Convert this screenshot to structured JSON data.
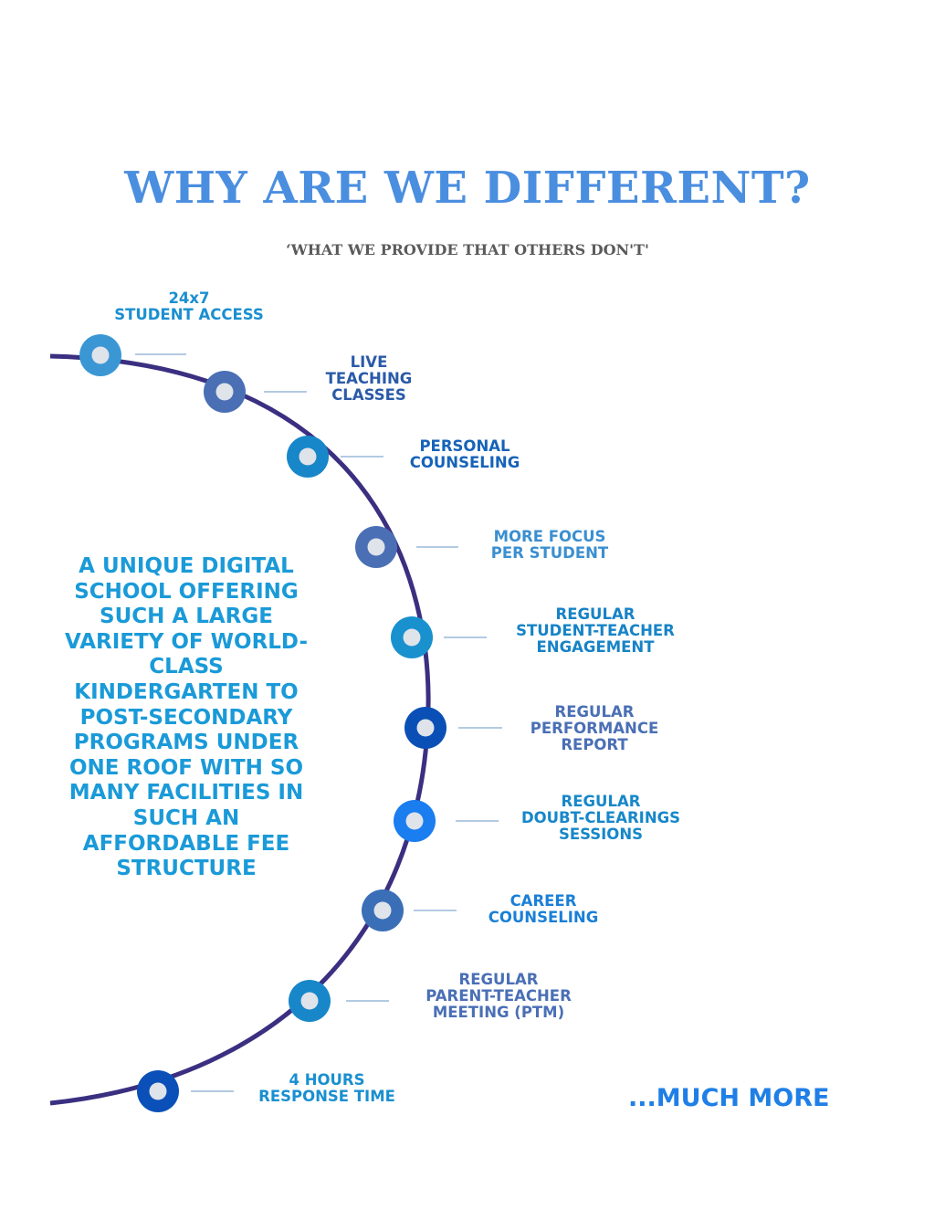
{
  "header": {
    "title": "WHY ARE WE DIFFERENT?",
    "subtitle": "‘WHAT WE PROVIDE THAT OTHERS DON'T'"
  },
  "center_text": "A UNIQUE DIGITAL SCHOOL OFFERING SUCH A LARGE VARIETY OF WORLD-CLASS KINDERGARTEN TO POST-SECONDARY PROGRAMS UNDER ONE ROOF WITH SO MANY FACILITIES IN SUCH AN AFFORDABLE FEE STRUCTURE",
  "features": [
    {
      "lines": [
        "24x7",
        "STUDENT ACCESS"
      ],
      "node_color": "#3a97d4",
      "text_color": "#1a8fd0"
    },
    {
      "lines": [
        "LIVE",
        "TEACHING",
        "CLASSES"
      ],
      "node_color": "#4a6fb5",
      "text_color": "#2a5aa8"
    },
    {
      "lines": [
        "PERSONAL",
        "COUNSELING"
      ],
      "node_color": "#1787c9",
      "text_color": "#1663b8"
    },
    {
      "lines": [
        "MORE FOCUS",
        "PER STUDENT"
      ],
      "node_color": "#4a6fb5",
      "text_color": "#3a8fd0"
    },
    {
      "lines": [
        "REGULAR",
        "STUDENT-TEACHER",
        "ENGAGEMENT"
      ],
      "node_color": "#1991cf",
      "text_color": "#1783c6"
    },
    {
      "lines": [
        "REGULAR",
        "PERFORMANCE",
        "REPORT"
      ],
      "node_color": "#0a4fb5",
      "text_color": "#4a6fb5"
    },
    {
      "lines": [
        "REGULAR",
        "DOUBT-CLEARINGS",
        "SESSIONS"
      ],
      "node_color": "#1a7df0",
      "text_color": "#1787c9"
    },
    {
      "lines": [
        "CAREER",
        "COUNSELING"
      ],
      "node_color": "#3a6fb8",
      "text_color": "#1a7fd6"
    },
    {
      "lines": [
        "REGULAR",
        "PARENT-TEACHER",
        "MEETING (PTM)"
      ],
      "node_color": "#1787c9",
      "text_color": "#4a6fb5"
    },
    {
      "lines": [
        "4 HOURS",
        "RESPONSE TIME"
      ],
      "node_color": "#0a50b8",
      "text_color": "#1a8fd0"
    }
  ],
  "footer": {
    "more": "...MUCH MORE"
  },
  "colors": {
    "arc": "#3a2f80",
    "connector": "#9ab8d8",
    "node_inner": "#dfe3ea"
  }
}
